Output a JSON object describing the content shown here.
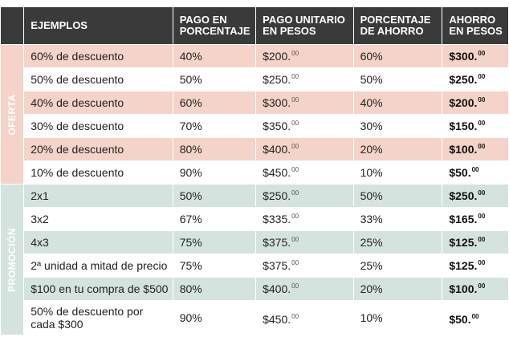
{
  "header": {
    "col1": "EJEMPLOS",
    "col2": "PAGO EN PORCENTAJE",
    "col3": "PAGO UNITARIO EN PESOS",
    "col4": "PORCENTAJE DE AHORRO",
    "col5": "AHORRO EN PESOS"
  },
  "sections": {
    "oferta": "OFERTA",
    "promocion": "PROMOCIÓN"
  },
  "rows": [
    {
      "example": "60% de descuento",
      "pay_pct": "40%",
      "unit": "$200.",
      "unit_cents": "00",
      "save_pct": "60%",
      "save": "$300.",
      "save_cents": "00"
    },
    {
      "example": "50% de descuento",
      "pay_pct": "50%",
      "unit": "$250.",
      "unit_cents": "00",
      "save_pct": "50%",
      "save": "$250.",
      "save_cents": "00"
    },
    {
      "example": "40% de descuento",
      "pay_pct": "60%",
      "unit": "$300.",
      "unit_cents": "00",
      "save_pct": "40%",
      "save": "$200.",
      "save_cents": "00"
    },
    {
      "example": "30% de descuento",
      "pay_pct": "70%",
      "unit": "$350.",
      "unit_cents": "00",
      "save_pct": "30%",
      "save": "$150.",
      "save_cents": "00"
    },
    {
      "example": "20% de descuento",
      "pay_pct": "80%",
      "unit": "$400.",
      "unit_cents": "00",
      "save_pct": "20%",
      "save": "$100.",
      "save_cents": "00"
    },
    {
      "example": "10% de descuento",
      "pay_pct": "90%",
      "unit": "$450.",
      "unit_cents": "00",
      "save_pct": "10%",
      "save": "$50.",
      "save_cents": "00"
    },
    {
      "example": "2x1",
      "pay_pct": "50%",
      "unit": "$250.",
      "unit_cents": "00",
      "save_pct": "50%",
      "save": "$250.",
      "save_cents": "00"
    },
    {
      "example": "3x2",
      "pay_pct": "67%",
      "unit": "$335.",
      "unit_cents": "00",
      "save_pct": "33%",
      "save": "$165.",
      "save_cents": "00"
    },
    {
      "example": "4x3",
      "pay_pct": "75%",
      "unit": "$375.",
      "unit_cents": "00",
      "save_pct": "25%",
      "save": "$125.",
      "save_cents": "00"
    },
    {
      "example": "2ª unidad a mitad de precio",
      "pay_pct": "75%",
      "unit": "$375.",
      "unit_cents": "00",
      "save_pct": "25%",
      "save": "$125.",
      "save_cents": "00"
    },
    {
      "example": "$100 en tu compra de $500",
      "pay_pct": "80%",
      "unit": "$400.",
      "unit_cents": "00",
      "save_pct": "20%",
      "save": "$100.",
      "save_cents": "00"
    },
    {
      "example": "50% de descuento por cada $300",
      "pay_pct": "90%",
      "unit": "$450.",
      "unit_cents": "00",
      "save_pct": "10%",
      "save": "$50.",
      "save_cents": "00"
    }
  ],
  "colors": {
    "header_bg": "#3a3a3a",
    "oferta_band": "#c8102e",
    "promo_band": "#2e7d6b",
    "oferta_row_tint": "#f4d3c8",
    "promo_row_tint": "#d5e3df"
  }
}
